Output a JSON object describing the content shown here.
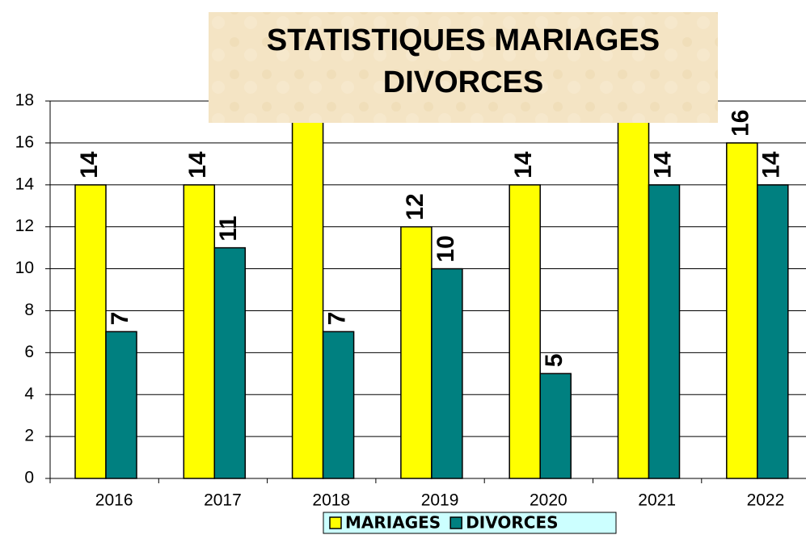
{
  "chart_data": {
    "type": "bar",
    "title": "STATISTIQUES MARIAGES DIVORCES",
    "categories": [
      "2016",
      "2017",
      "2018",
      "2019",
      "2020",
      "2021",
      "2022"
    ],
    "series": [
      {
        "name": "MARIAGES",
        "color": "#ffff00",
        "values": [
          14,
          14,
          17,
          12,
          14,
          17,
          16
        ]
      },
      {
        "name": "DIVORCES",
        "color": "#008080",
        "values": [
          7,
          11,
          7,
          10,
          5,
          14,
          14
        ]
      }
    ],
    "ylim": [
      0,
      18
    ],
    "yticks": [
      0,
      2,
      4,
      6,
      8,
      10,
      12,
      14,
      16,
      18
    ],
    "grid": true,
    "legend": "bottom"
  }
}
